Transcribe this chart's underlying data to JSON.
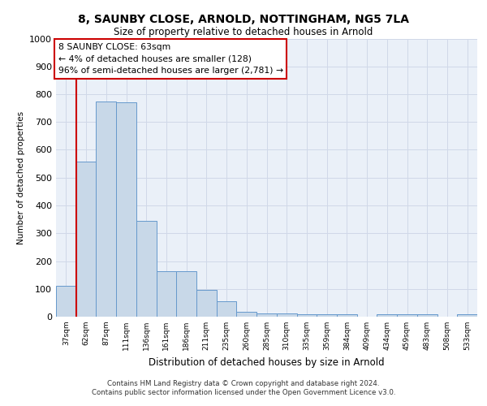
{
  "title_line1": "8, SAUNBY CLOSE, ARNOLD, NOTTINGHAM, NG5 7LA",
  "title_line2": "Size of property relative to detached houses in Arnold",
  "xlabel": "Distribution of detached houses by size in Arnold",
  "ylabel": "Number of detached properties",
  "categories": [
    "37sqm",
    "62sqm",
    "87sqm",
    "111sqm",
    "136sqm",
    "161sqm",
    "186sqm",
    "211sqm",
    "235sqm",
    "260sqm",
    "285sqm",
    "310sqm",
    "335sqm",
    "359sqm",
    "384sqm",
    "409sqm",
    "434sqm",
    "459sqm",
    "483sqm",
    "508sqm",
    "533sqm"
  ],
  "values": [
    112,
    557,
    775,
    770,
    345,
    163,
    163,
    95,
    55,
    18,
    12,
    12,
    10,
    10,
    8,
    0,
    8,
    8,
    8,
    0,
    10
  ],
  "bar_color": "#c8d8e8",
  "bar_edge_color": "#6699cc",
  "grid_color": "#d0d8e8",
  "annotation_text": "8 SAUNBY CLOSE: 63sqm\n← 4% of detached houses are smaller (128)\n96% of semi-detached houses are larger (2,781) →",
  "annotation_box_color": "#ffffff",
  "annotation_box_edge_color": "#cc0000",
  "vline_x": 1,
  "vline_color": "#cc0000",
  "ylim": [
    0,
    1000
  ],
  "yticks": [
    0,
    100,
    200,
    300,
    400,
    500,
    600,
    700,
    800,
    900,
    1000
  ],
  "footer_text": "Contains HM Land Registry data © Crown copyright and database right 2024.\nContains public sector information licensed under the Open Government Licence v3.0.",
  "bg_color": "#eaf0f8",
  "fig_width": 6.0,
  "fig_height": 5.0
}
